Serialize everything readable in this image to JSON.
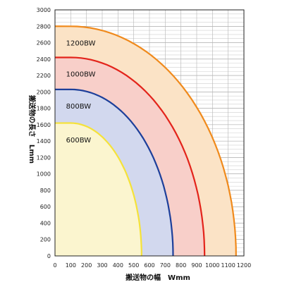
{
  "chart_data": {
    "type": "area",
    "title": "",
    "xlabel": "搬送物の幅　Wmm",
    "ylabel": "搬送物の長さ　Lmm",
    "xlim": [
      0,
      1200
    ],
    "ylim": [
      0,
      3000
    ],
    "x_ticks": [
      0,
      100,
      200,
      300,
      400,
      500,
      600,
      700,
      800,
      900,
      1000,
      1100,
      1200
    ],
    "y_ticks": [
      0,
      200,
      400,
      600,
      800,
      1000,
      1200,
      1400,
      1600,
      1800,
      2000,
      2200,
      2400,
      2600,
      2800,
      3000
    ],
    "grid": true,
    "series": [
      {
        "name": "1200BW",
        "top_length": 2800,
        "flat_until_width": 100,
        "end_width": 1150,
        "line_color": "#f08a1c",
        "fill_color": "#fbe3c6"
      },
      {
        "name": "1000BW",
        "top_length": 2420,
        "flat_until_width": 100,
        "end_width": 950,
        "line_color": "#e3241b",
        "fill_color": "#f8cfc9"
      },
      {
        "name": "800BW",
        "top_length": 2030,
        "flat_until_width": 100,
        "end_width": 750,
        "line_color": "#1d3f9a",
        "fill_color": "#d2d8ee"
      },
      {
        "name": "600BW",
        "top_length": 1620,
        "flat_until_width": 100,
        "end_width": 550,
        "line_color": "#f5e23a",
        "fill_color": "#fbf5cf"
      }
    ]
  }
}
